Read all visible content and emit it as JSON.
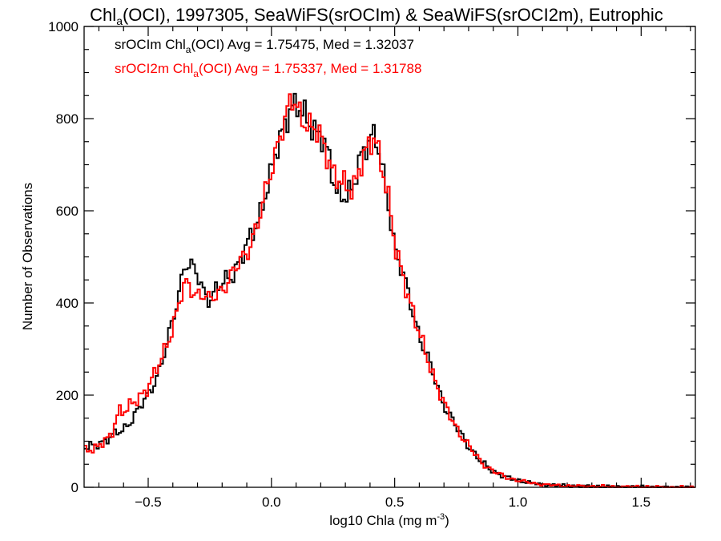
{
  "chart_data": {
    "type": "line",
    "title": {
      "prefix": "Chl",
      "sub": "a",
      "suffix": "(OCI), 1997305, SeaWiFS(srOCIm) & SeaWiFS(srOCI2m), Eutrophic"
    },
    "xlabel": {
      "text": "log10 Chla (mg m",
      "sup": "-3",
      "end": ")"
    },
    "ylabel": "Number of Observations",
    "xlim": [
      -0.76,
      1.72
    ],
    "ylim": [
      0,
      1000
    ],
    "xticks": [
      -0.5,
      0.0,
      0.5,
      1.0,
      1.5
    ],
    "xtick_labels": [
      "−0.5",
      "0.0",
      "0.5",
      "1.0",
      "1.5"
    ],
    "yticks": [
      0,
      200,
      400,
      600,
      800,
      1000
    ],
    "ytick_labels": [
      "0",
      "200",
      "400",
      "600",
      "800",
      "1000"
    ],
    "grid": false,
    "legend_position": "top-left",
    "bin_width": 0.01,
    "series": [
      {
        "name": "srOCIm",
        "color": "#000000",
        "legend": {
          "a": "srOCIm Chl",
          "sub": "a",
          "b": "(OCI) Avg = 1.75475, Med = 1.32037"
        },
        "x": [
          -0.75,
          -0.7,
          -0.65,
          -0.6,
          -0.55,
          -0.5,
          -0.45,
          -0.4,
          -0.37,
          -0.35,
          -0.33,
          -0.3,
          -0.27,
          -0.25,
          -0.22,
          -0.2,
          -0.15,
          -0.1,
          -0.05,
          0.0,
          0.03,
          0.06,
          0.08,
          0.1,
          0.13,
          0.16,
          0.2,
          0.23,
          0.26,
          0.3,
          0.33,
          0.36,
          0.4,
          0.42,
          0.45,
          0.48,
          0.5,
          0.55,
          0.6,
          0.65,
          0.7,
          0.75,
          0.8,
          0.85,
          0.9,
          0.95,
          1.0,
          1.05,
          1.1,
          1.2,
          1.3,
          1.4,
          1.5,
          1.6,
          1.7
        ],
        "y": [
          85,
          95,
          110,
          125,
          160,
          200,
          260,
          360,
          440,
          490,
          480,
          460,
          420,
          410,
          430,
          440,
          470,
          520,
          590,
          680,
          750,
          800,
          830,
          820,
          810,
          790,
          760,
          720,
          650,
          630,
          640,
          720,
          760,
          760,
          690,
          600,
          520,
          430,
          330,
          255,
          180,
          130,
          90,
          55,
          35,
          22,
          15,
          10,
          6,
          3,
          2,
          1,
          1,
          0,
          0
        ]
      },
      {
        "name": "srOCI2m",
        "color": "#ff0000",
        "legend": {
          "a": "srOCI2m Chl",
          "sub": "a",
          "b": "(OCI) Avg = 1.75337, Med = 1.31788"
        },
        "x": [
          -0.75,
          -0.7,
          -0.65,
          -0.62,
          -0.6,
          -0.55,
          -0.5,
          -0.45,
          -0.4,
          -0.37,
          -0.35,
          -0.33,
          -0.3,
          -0.27,
          -0.25,
          -0.22,
          -0.2,
          -0.15,
          -0.1,
          -0.05,
          0.0,
          0.03,
          0.06,
          0.08,
          0.1,
          0.13,
          0.16,
          0.2,
          0.23,
          0.26,
          0.3,
          0.33,
          0.36,
          0.4,
          0.42,
          0.45,
          0.48,
          0.5,
          0.55,
          0.6,
          0.65,
          0.7,
          0.75,
          0.8,
          0.85,
          0.9,
          0.95,
          1.0,
          1.05,
          1.1,
          1.2,
          1.3,
          1.4,
          1.5,
          1.6,
          1.7
        ],
        "y": [
          80,
          90,
          110,
          170,
          165,
          185,
          220,
          270,
          350,
          410,
          440,
          430,
          420,
          420,
          400,
          420,
          430,
          470,
          510,
          580,
          690,
          760,
          800,
          840,
          830,
          800,
          780,
          760,
          720,
          670,
          650,
          650,
          700,
          740,
          760,
          700,
          610,
          520,
          430,
          330,
          255,
          180,
          130,
          90,
          55,
          35,
          22,
          15,
          10,
          6,
          3,
          2,
          1,
          1,
          0,
          0
        ]
      }
    ]
  }
}
